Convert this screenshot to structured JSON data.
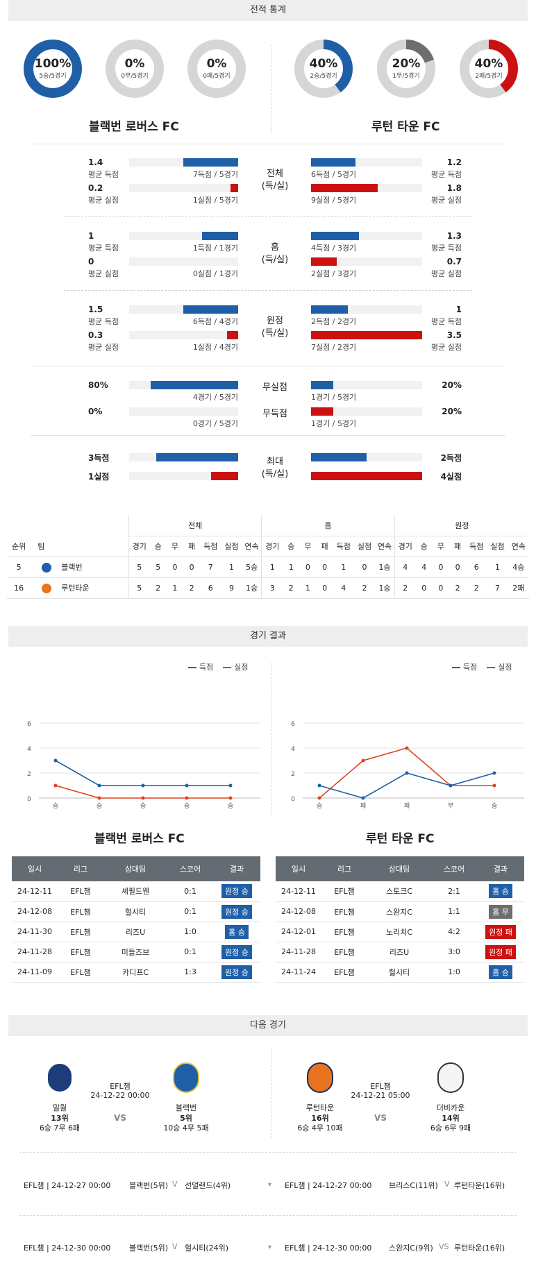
{
  "sections": {
    "stats": "전적 통계",
    "results": "경기 결과",
    "next": "다음 경기"
  },
  "colors": {
    "blue": "#1f5fa8",
    "red": "#cc1111",
    "gray": "#6e6e6e"
  },
  "home": {
    "name": "블랙번 로버스 FC",
    "donuts": [
      {
        "pct": "100%",
        "sub": "5승/5경기",
        "value": 1.0,
        "color": "#1f5fa8"
      },
      {
        "pct": "0%",
        "sub": "0무/5경기",
        "value": 0,
        "color": "#6e6e6e"
      },
      {
        "pct": "0%",
        "sub": "0패/5경기",
        "value": 0,
        "color": "#cc1111"
      }
    ]
  },
  "away": {
    "name": "루턴 타운 FC",
    "donuts": [
      {
        "pct": "40%",
        "sub": "2승/5경기",
        "value": 0.4,
        "color": "#1f5fa8"
      },
      {
        "pct": "20%",
        "sub": "1무/5경기",
        "value": 0.2,
        "color": "#6e6e6e"
      },
      {
        "pct": "40%",
        "sub": "2패/5경기",
        "value": 0.4,
        "color": "#cc1111"
      }
    ]
  },
  "stat_groups": [
    {
      "center": [
        "전체",
        "(득/실)"
      ],
      "rows": [
        {
          "l_num": "1.4",
          "l_lbl": "평균 득점",
          "l_cap": "7득점 / 5경기",
          "l_frac": 0.5,
          "r_num": "1.2",
          "r_lbl": "평균 득점",
          "r_cap": "6득점 / 5경기",
          "r_frac": 0.4,
          "color": "blue"
        },
        {
          "l_num": "0.2",
          "l_lbl": "평균 실점",
          "l_cap": "1실점 / 5경기",
          "l_frac": 0.07,
          "r_num": "1.8",
          "r_lbl": "평균 실점",
          "r_cap": "9실점 / 5경기",
          "r_frac": 0.6,
          "color": "red"
        }
      ]
    },
    {
      "center": [
        "홈",
        "(득/실)"
      ],
      "rows": [
        {
          "l_num": "1",
          "l_lbl": "평균 득점",
          "l_cap": "1득점 / 1경기",
          "l_frac": 0.33,
          "r_num": "1.3",
          "r_lbl": "평균 득점",
          "r_cap": "4득점 / 3경기",
          "r_frac": 0.43,
          "color": "blue"
        },
        {
          "l_num": "0",
          "l_lbl": "평균 실점",
          "l_cap": "0실점 / 1경기",
          "l_frac": 0,
          "r_num": "0.7",
          "r_lbl": "평균 실점",
          "r_cap": "2실점 / 3경기",
          "r_frac": 0.23,
          "color": "red"
        }
      ]
    },
    {
      "center": [
        "원정",
        "(득/실)"
      ],
      "rows": [
        {
          "l_num": "1.5",
          "l_lbl": "평균 득점",
          "l_cap": "6득점 / 4경기",
          "l_frac": 0.5,
          "r_num": "1",
          "r_lbl": "평균 득점",
          "r_cap": "2득점 / 2경기",
          "r_frac": 0.33,
          "color": "blue"
        },
        {
          "l_num": "0.3",
          "l_lbl": "평균 실점",
          "l_cap": "1실점 / 4경기",
          "l_frac": 0.1,
          "r_num": "3.5",
          "r_lbl": "평균 실점",
          "r_cap": "7실점 / 2경기",
          "r_frac": 1.0,
          "color": "red"
        }
      ]
    }
  ],
  "nil_rows": [
    {
      "center": "무실점",
      "l_num": "80%",
      "l_cap": "4경기 / 5경기",
      "l_frac": 0.8,
      "r_num": "20%",
      "r_cap": "1경기 / 5경기",
      "r_frac": 0.2,
      "color": "blue"
    },
    {
      "center": "무득점",
      "l_num": "0%",
      "l_cap": "0경기 / 5경기",
      "l_frac": 0,
      "r_num": "20%",
      "r_cap": "1경기 / 5경기",
      "r_frac": 0.2,
      "color": "red"
    }
  ],
  "max_group": {
    "center": [
      "최대",
      "(득/실)"
    ],
    "rows": [
      {
        "l_num": "3득점",
        "l_frac": 0.75,
        "r_num": "2득점",
        "r_frac": 0.5,
        "color": "blue"
      },
      {
        "l_num": "1실점",
        "l_frac": 0.25,
        "r_num": "4실점",
        "r_frac": 1.0,
        "color": "red"
      }
    ]
  },
  "standings": {
    "groups": [
      "전체",
      "홈",
      "원정"
    ],
    "headers": [
      "순위",
      "팀",
      "경기",
      "승",
      "무",
      "패",
      "득점",
      "실점",
      "연속",
      "경기",
      "승",
      "무",
      "패",
      "득점",
      "실점",
      "연속",
      "경기",
      "승",
      "무",
      "패",
      "득점",
      "실점",
      "연속"
    ],
    "rows": [
      [
        "5",
        "블랙번",
        "5",
        "5",
        "0",
        "0",
        "7",
        "1",
        "5승",
        "1",
        "1",
        "0",
        "0",
        "1",
        "0",
        "1승",
        "4",
        "4",
        "0",
        "0",
        "6",
        "1",
        "4승"
      ],
      [
        "16",
        "루턴타운",
        "5",
        "2",
        "1",
        "2",
        "6",
        "9",
        "1승",
        "3",
        "2",
        "1",
        "0",
        "4",
        "2",
        "1승",
        "2",
        "0",
        "0",
        "2",
        "2",
        "7",
        "2패"
      ]
    ]
  },
  "charts": {
    "legend": [
      "득점",
      "실점"
    ],
    "y_ticks": [
      "6",
      "4",
      "2",
      "0"
    ],
    "chart_data": [
      {
        "type": "line",
        "title": "블랙번 로버스 FC",
        "categories": [
          "승",
          "승",
          "승",
          "승",
          "승"
        ],
        "ylim": [
          0,
          6
        ],
        "series": [
          {
            "name": "득점",
            "values": [
              3,
              1,
              1,
              1,
              1
            ],
            "color": "#1f5fa8"
          },
          {
            "name": "실점",
            "values": [
              1,
              0,
              0,
              0,
              0
            ],
            "color": "#e0401f"
          }
        ]
      },
      {
        "type": "line",
        "title": "루턴 타운 FC",
        "categories": [
          "승",
          "패",
          "패",
          "무",
          "승"
        ],
        "ylim": [
          0,
          6
        ],
        "series": [
          {
            "name": "득점",
            "values": [
              1,
              0,
              2,
              1,
              2
            ],
            "color": "#1f5fa8"
          },
          {
            "name": "실점",
            "values": [
              0,
              3,
              4,
              1,
              1
            ],
            "color": "#e0401f"
          }
        ]
      }
    ]
  },
  "results": {
    "headers": [
      "일시",
      "리그",
      "상대팀",
      "스코어",
      "결과"
    ],
    "home": [
      [
        "24-12-11",
        "EFL챔",
        "셰필드웬",
        "0:1",
        "원정 승",
        "blue"
      ],
      [
        "24-12-08",
        "EFL챔",
        "헐시티",
        "0:1",
        "원정 승",
        "blue"
      ],
      [
        "24-11-30",
        "EFL챔",
        "리즈U",
        "1:0",
        "홈 승",
        "blue"
      ],
      [
        "24-11-28",
        "EFL챔",
        "미들즈브",
        "0:1",
        "원정 승",
        "blue"
      ],
      [
        "24-11-09",
        "EFL챔",
        "카디프C",
        "1:3",
        "원정 승",
        "blue"
      ]
    ],
    "away": [
      [
        "24-12-11",
        "EFL챔",
        "스토크C",
        "2:1",
        "홈 승",
        "blue"
      ],
      [
        "24-12-08",
        "EFL챔",
        "스완지C",
        "1:1",
        "홈 무",
        "gray"
      ],
      [
        "24-12-01",
        "EFL챔",
        "노리치C",
        "4:2",
        "원정 패",
        "red"
      ],
      [
        "24-11-28",
        "EFL챔",
        "리즈U",
        "3:0",
        "원정 패",
        "red"
      ],
      [
        "24-11-24",
        "EFL챔",
        "헐시티",
        "1:0",
        "홈 승",
        "blue"
      ]
    ]
  },
  "next_matches": [
    {
      "league": "EFL챔",
      "datetime": "24-12-22 00:00",
      "vs": "VS",
      "left": {
        "name": "밀월",
        "rank": "13위",
        "record": "6승 7무 6패"
      },
      "right": {
        "name": "블랙번",
        "rank": "5위",
        "record": "10승 4무 5패"
      }
    },
    {
      "league": "EFL챔",
      "datetime": "24-12-21 05:00",
      "vs": "VS",
      "left": {
        "name": "루턴타운",
        "rank": "16위",
        "record": "6승 4무 10패"
      },
      "right": {
        "name": "더비카운",
        "rank": "14위",
        "record": "6승 6무 9패"
      }
    }
  ],
  "upcoming": [
    {
      "left": "EFL챔 | 24-12-27 00:00",
      "team1": "블랙번(5위)",
      "vs": "V",
      "team2": "선덜랜드(4위)",
      "right": "EFL챔 | 24-12-27 00:00",
      "team3": "브리스C(11위)",
      "vs2": "V",
      "team4": "루턴타운(16위)"
    },
    {
      "left": "EFL챔 | 24-12-30 00:00",
      "team1": "블랙번(5위)",
      "vs": "V",
      "team2": "헐시티(24위)",
      "right": "EFL챔 | 24-12-30 00:00",
      "team3": "스완지C(9위)",
      "vs2": "VS",
      "team4": "루턴타운(16위)"
    }
  ]
}
